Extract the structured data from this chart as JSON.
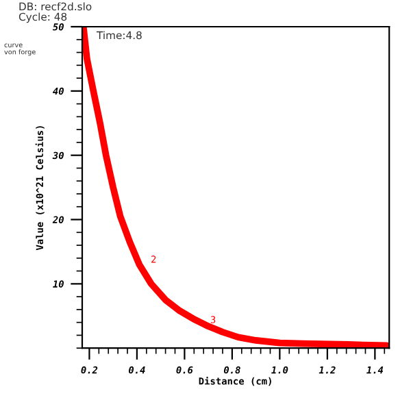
{
  "chart_data": {
    "type": "line",
    "xlabel": "Distance (cm)",
    "ylabel": "Value (x10^21 Celsius)",
    "x": [
      0.175,
      0.19,
      0.217,
      0.245,
      0.27,
      0.3,
      0.33,
      0.37,
      0.41,
      0.46,
      0.52,
      0.58,
      0.635,
      0.7,
      0.76,
      0.825,
      0.9,
      1.0,
      1.1,
      1.25,
      1.35,
      1.45
    ],
    "series": [
      {
        "color": "#ff0000",
        "values": [
          50,
          45,
          40,
          35,
          30,
          25,
          20.5,
          16.5,
          13,
          10,
          7.5,
          5.8,
          4.6,
          3.4,
          2.5,
          1.7,
          1.2,
          0.8,
          0.7,
          0.6,
          0.5,
          0.4
        ]
      }
    ],
    "xlim": [
      0.17,
      1.46
    ],
    "ylim": [
      0,
      50
    ],
    "xticks": [
      0.2,
      0.4,
      0.6,
      0.8,
      {
        "value": 1.0,
        "label": "1.0"
      },
      1.2,
      1.4
    ],
    "yticks": [
      10,
      20,
      30,
      40,
      50
    ],
    "grid": false,
    "legend": false,
    "annotations": [
      "DB: recf2d.slo",
      "Cycle: 48",
      "Time:4.8",
      "curve",
      "von forge",
      {
        "text": "2",
        "x": 0.45,
        "y": 13
      },
      {
        "text": "3",
        "x": 0.7,
        "y": 3.6
      }
    ]
  }
}
